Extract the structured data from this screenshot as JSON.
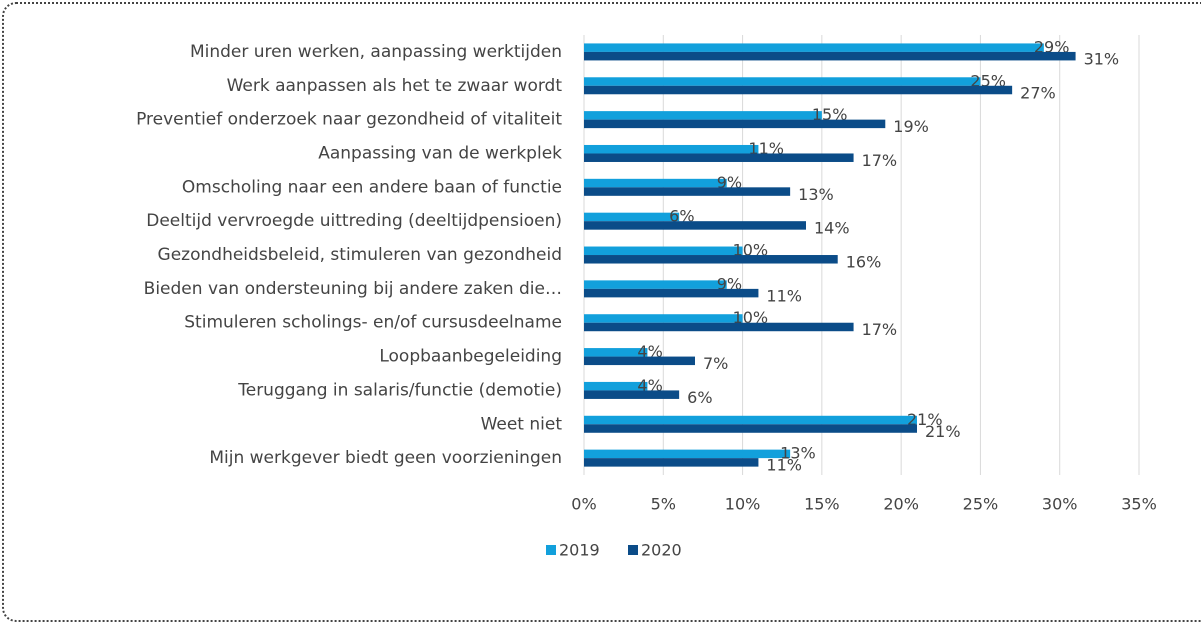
{
  "chart_data": {
    "type": "hbar",
    "categories": [
      "Minder uren werken, aanpassing werktijden",
      "Werk aanpassen als het te zwaar wordt",
      "Preventief onderzoek naar gezondheid of vitaliteit",
      "Aanpassing van de werkplek",
      "Omscholing naar een andere baan of functie",
      "Deeltijd vervroegde uittreding (deeltijdpensioen)",
      "Gezondheidsbeleid, stimuleren van gezondheid",
      "Bieden van ondersteuning bij andere zaken die…",
      "Stimuleren scholings- en/of cursusdeelname",
      "Loopbaanbegeleiding",
      "Teruggang in salaris/functie (demotie)",
      "Weet niet",
      "Mijn werkgever biedt geen voorzieningen"
    ],
    "series": [
      {
        "name": "2019",
        "color": "#12a0dc",
        "values": [
          29,
          25,
          15,
          11,
          9,
          6,
          10,
          9,
          10,
          4,
          4,
          21,
          13
        ],
        "value_labels": [
          "29%",
          "25%",
          "15%",
          "11%",
          "9%",
          "6%",
          "10%",
          "9%",
          "10%",
          "4%",
          "4%",
          "21%",
          "13%"
        ]
      },
      {
        "name": "2020",
        "color": "#0b4c88",
        "values": [
          31,
          27,
          19,
          17,
          13,
          14,
          16,
          11,
          17,
          7,
          6,
          21,
          11
        ],
        "value_labels": [
          "31%",
          "27%",
          "19%",
          "17%",
          "13%",
          "14%",
          "16%",
          "11%",
          "17%",
          "7%",
          "6%",
          "21%",
          "11%"
        ]
      }
    ],
    "xlim": [
      0,
      35
    ],
    "xticks": [
      {
        "value": 0,
        "label": "0%"
      },
      {
        "value": 5,
        "label": "5%"
      },
      {
        "value": 10,
        "label": "10%"
      },
      {
        "value": 15,
        "label": "15%"
      },
      {
        "value": 20,
        "label": "20%"
      },
      {
        "value": 25,
        "label": "25%"
      },
      {
        "value": 30,
        "label": "30%"
      },
      {
        "value": 35,
        "label": "35%"
      }
    ],
    "grid": true,
    "legend": "bottom"
  }
}
